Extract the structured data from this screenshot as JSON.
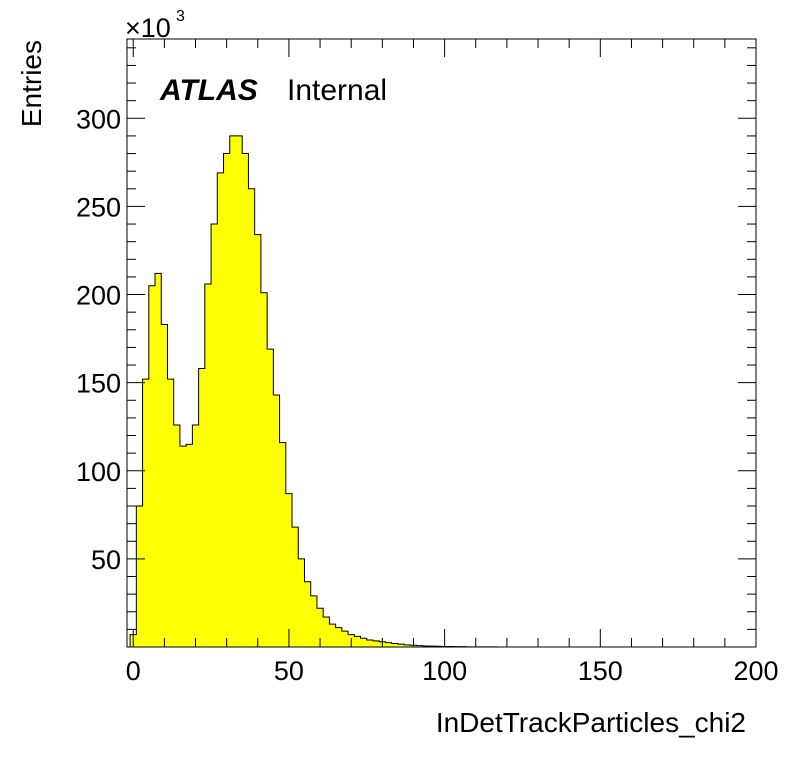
{
  "chart_data": {
    "type": "histogram",
    "title": "",
    "xlabel": "InDetTrackParticles_chi2",
    "ylabel": "Entries",
    "y_multiplier_label": "×10",
    "y_multiplier_exp": "3",
    "bin_width": 2,
    "xlim": [
      -2,
      200
    ],
    "ylim": [
      0,
      345
    ],
    "xticks": [
      0,
      50,
      100,
      150,
      200
    ],
    "xtick_labels": [
      "0",
      "50",
      "100",
      "150",
      "200"
    ],
    "yticks": [
      50,
      100,
      150,
      200,
      250,
      300
    ],
    "ytick_labels": [
      "50",
      "100",
      "150",
      "200",
      "250",
      "300"
    ],
    "fill_color": "#ffff00",
    "line_color": "#000000",
    "bin_edges_start": -1,
    "values": [
      7,
      80,
      152,
      205,
      212,
      183,
      152,
      126,
      114,
      115,
      126,
      158,
      206,
      240,
      269,
      280,
      290,
      290,
      280,
      260,
      234,
      201,
      169,
      143,
      116,
      87,
      68,
      50,
      37,
      29,
      22,
      17,
      13,
      11,
      9,
      7,
      6,
      5,
      4,
      3.5,
      3,
      2.5,
      2,
      1.6,
      1.2,
      1,
      0.8,
      0.6,
      0.5,
      0.4,
      0.3,
      0.3,
      0.2,
      0.2,
      0.1,
      0.1,
      0.1,
      0.1,
      0.1,
      0,
      0,
      0,
      0,
      0,
      0,
      0,
      0,
      0,
      0,
      0,
      0,
      0,
      0,
      0,
      0,
      0,
      0,
      0,
      0,
      0,
      0,
      0,
      0,
      0,
      0,
      0,
      0,
      0,
      0,
      0,
      0,
      0,
      0,
      0,
      0,
      0,
      0,
      0,
      0,
      0
    ]
  },
  "annotations": {
    "experiment": "ATLAS",
    "status": "Internal"
  }
}
